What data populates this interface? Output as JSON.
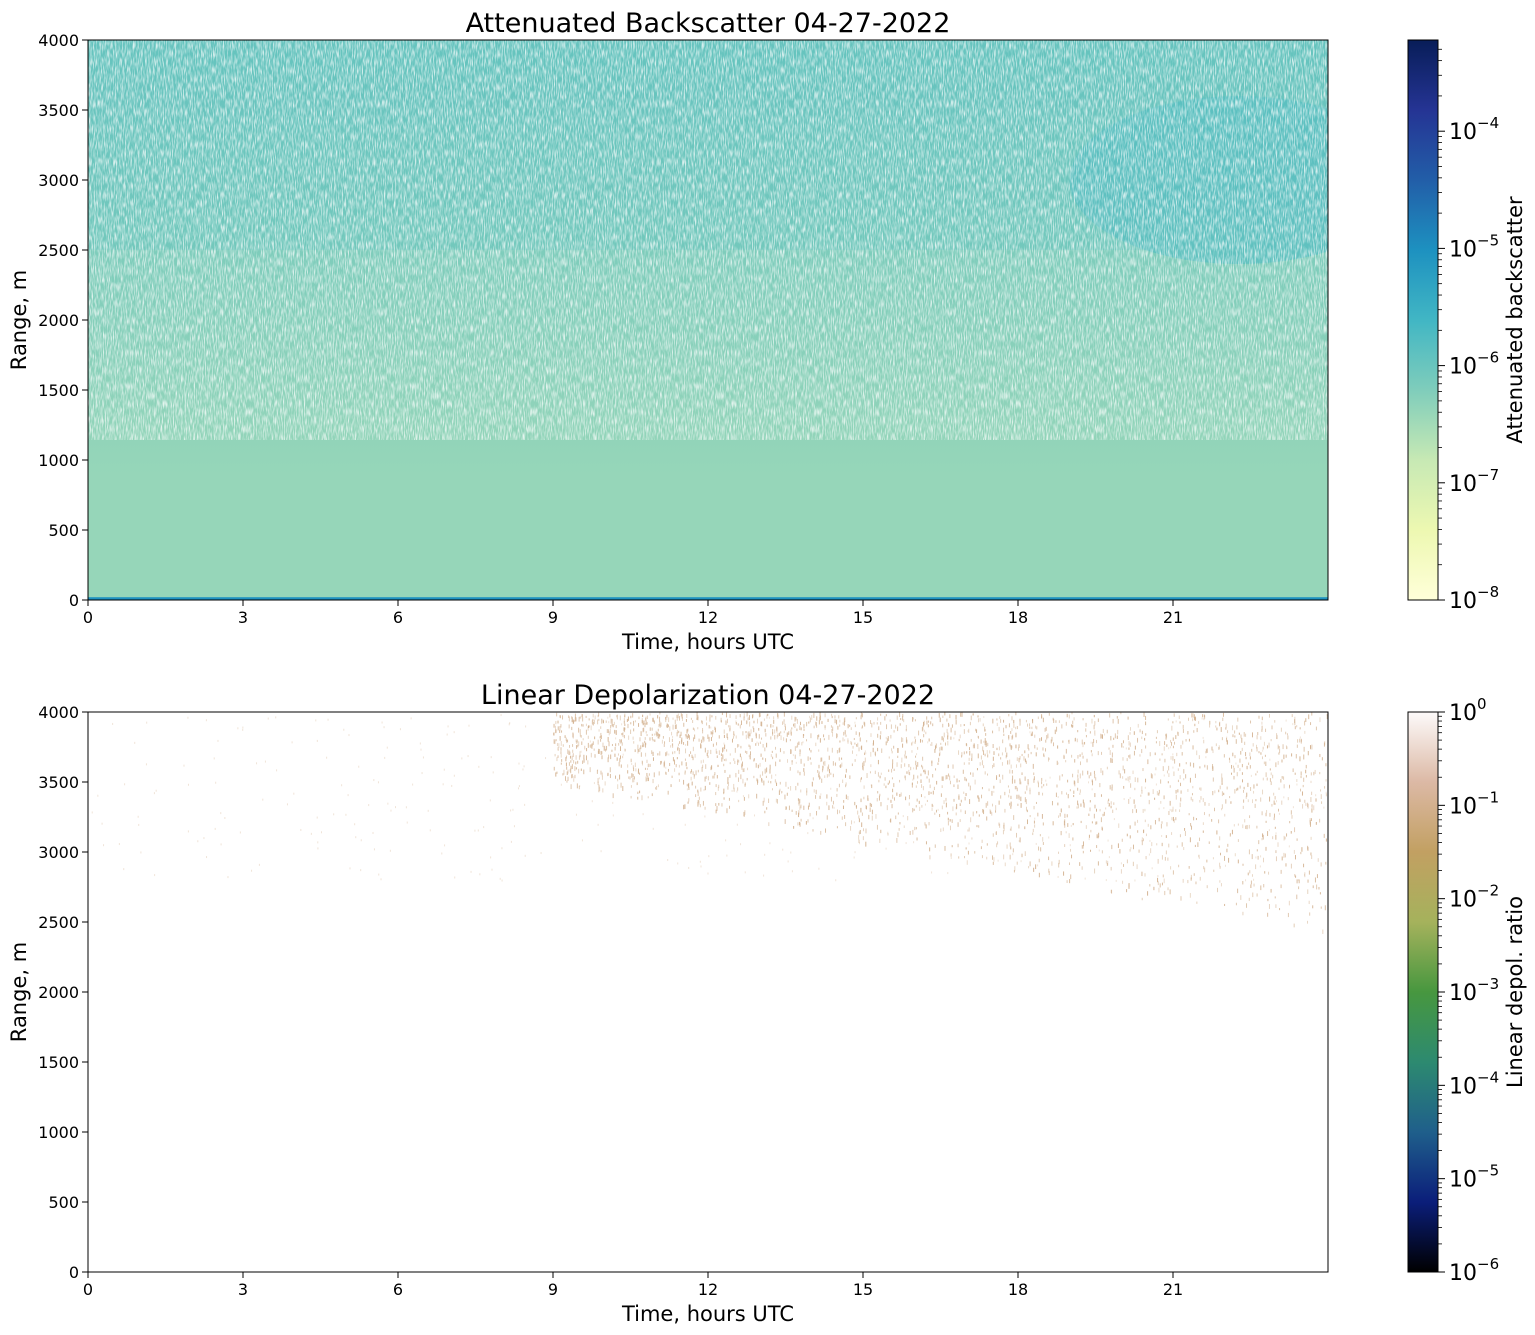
{
  "chart_data": [
    {
      "type": "heatmap",
      "title": "Attenuated Backscatter 04-27-2022",
      "xlabel": "Time, hours UTC",
      "ylabel": "Range, m",
      "xlim": [
        0,
        24
      ],
      "ylim": [
        0,
        4000
      ],
      "xticks": [
        0,
        3,
        6,
        9,
        12,
        15,
        18,
        21
      ],
      "xtick_labels": [
        "0",
        "3",
        "6",
        "9",
        "12",
        "15",
        "18",
        "21"
      ],
      "yticks": [
        0,
        500,
        1000,
        1500,
        2000,
        2500,
        3000,
        3500,
        4000
      ],
      "ytick_labels": [
        "0",
        "500",
        "1000",
        "1500",
        "2000",
        "2500",
        "3000",
        "3500",
        "4000"
      ],
      "colorbar": {
        "label": "Attenuated backscatter",
        "scale": "log",
        "range": [
          1e-08,
          0.0006
        ],
        "ticks": [
          1e-08,
          1e-07,
          1e-06,
          1e-05,
          0.0001
        ],
        "tick_labels": [
          {
            "base": "10",
            "exp": "−8"
          },
          {
            "base": "10",
            "exp": "−7"
          },
          {
            "base": "10",
            "exp": "−6"
          },
          {
            "base": "10",
            "exp": "−5"
          },
          {
            "base": "10",
            "exp": "−4"
          }
        ],
        "colors": [
          "#ffffd9",
          "#edf8b1",
          "#c7e9b4",
          "#7fcdbb",
          "#41b6c4",
          "#1d91c0",
          "#225ea8",
          "#253494",
          "#081d58"
        ]
      },
      "field_description": {
        "near_surface_layer": {
          "range_m": [
            0,
            1000
          ],
          "typical_value": 4e-07
        },
        "noisy_upper_region": {
          "range_m": [
            1000,
            4000
          ],
          "typical_value": 1e-06
        },
        "enhanced_layer": {
          "time_h": [
            19,
            24
          ],
          "range_m": [
            2400,
            3600
          ],
          "typical_value": 2e-06
        }
      }
    },
    {
      "type": "heatmap",
      "title": "Linear Depolarization 04-27-2022",
      "xlabel": "Time, hours UTC",
      "ylabel": "Range, m",
      "xlim": [
        0,
        24
      ],
      "ylim": [
        0,
        4000
      ],
      "xticks": [
        0,
        3,
        6,
        9,
        12,
        15,
        18,
        21
      ],
      "xtick_labels": [
        "0",
        "3",
        "6",
        "9",
        "12",
        "15",
        "18",
        "21"
      ],
      "yticks": [
        0,
        500,
        1000,
        1500,
        2000,
        2500,
        3000,
        3500,
        4000
      ],
      "ytick_labels": [
        "0",
        "500",
        "1000",
        "1500",
        "2000",
        "2500",
        "3000",
        "3500",
        "4000"
      ],
      "colorbar": {
        "label": "Linear depol. ratio",
        "scale": "log",
        "range": [
          1e-06,
          1
        ],
        "ticks": [
          1e-06,
          1e-05,
          0.0001,
          0.001,
          0.01,
          0.1,
          1
        ],
        "tick_labels": [
          {
            "base": "10",
            "exp": "−6"
          },
          {
            "base": "10",
            "exp": "−5"
          },
          {
            "base": "10",
            "exp": "−4"
          },
          {
            "base": "10",
            "exp": "−3"
          },
          {
            "base": "10",
            "exp": "−2"
          },
          {
            "base": "10",
            "exp": "−1"
          },
          {
            "base": "10",
            "exp": "0"
          }
        ],
        "colors": [
          "#000000",
          "#0b1e7a",
          "#1f5f8b",
          "#2d8a70",
          "#47973f",
          "#a5b25c",
          "#c2a062",
          "#dcb9a5",
          "#fdfafa"
        ]
      },
      "field_description": {
        "scattered_points": {
          "time_h": [
            9,
            24
          ],
          "range_m": [
            2000,
            4000
          ],
          "typical_value": 0.1
        }
      }
    }
  ]
}
